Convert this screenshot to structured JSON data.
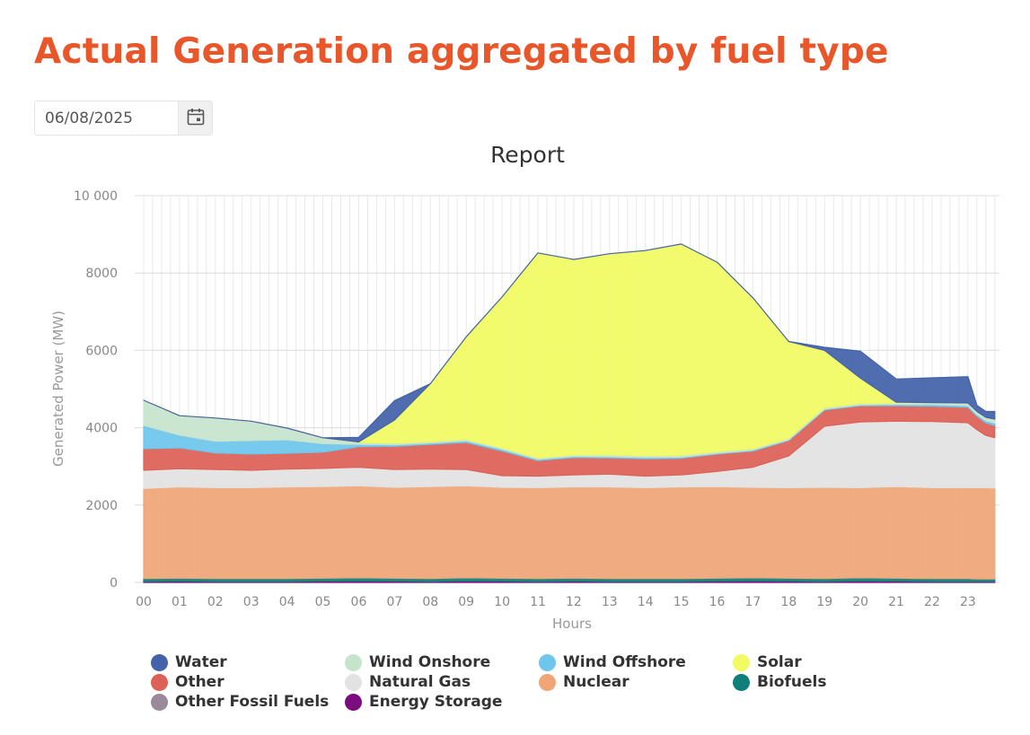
{
  "page": {
    "title": "Actual Generation aggregated by fuel type"
  },
  "date_picker": {
    "value": "06/08/2025",
    "icon": "calendar-icon"
  },
  "chart_data": {
    "type": "area",
    "stacked": true,
    "title": "Report",
    "xlabel": "Hours",
    "ylabel": "Generated Power (MW)",
    "ylim": [
      0,
      10000
    ],
    "yticks": [
      0,
      2000,
      4000,
      6000,
      8000,
      10000
    ],
    "ytick_labels": [
      "0",
      "2000",
      "4000",
      "6000",
      "8000",
      "10 000"
    ],
    "xtick_labels": [
      "00",
      "01",
      "02",
      "03",
      "04",
      "05",
      "06",
      "07",
      "08",
      "09",
      "10",
      "11",
      "12",
      "13",
      "14",
      "15",
      "16",
      "17",
      "18",
      "19",
      "20",
      "21",
      "22",
      "23"
    ],
    "grid": true,
    "legend_position": "bottom",
    "x": [
      0,
      1,
      2,
      3,
      4,
      5,
      6,
      7,
      8,
      9,
      10,
      11,
      12,
      13,
      14,
      15,
      16,
      17,
      18,
      19,
      20,
      21,
      22,
      23,
      23.25,
      23.5,
      23.75
    ],
    "series": [
      {
        "name": "Energy Storage",
        "color": "#7b0d7e",
        "values": [
          20,
          30,
          20,
          20,
          20,
          30,
          40,
          30,
          20,
          40,
          30,
          20,
          30,
          20,
          20,
          20,
          30,
          40,
          30,
          20,
          40,
          30,
          20,
          20,
          20,
          20,
          20
        ]
      },
      {
        "name": "Biofuels",
        "color": "#0f7f7a",
        "values": [
          80,
          80,
          80,
          80,
          80,
          80,
          80,
          80,
          80,
          80,
          80,
          80,
          80,
          80,
          80,
          80,
          80,
          80,
          80,
          80,
          80,
          80,
          80,
          80,
          70,
          70,
          70
        ]
      },
      {
        "name": "Nuclear",
        "color": "#f0a577",
        "values": [
          2330,
          2360,
          2350,
          2350,
          2370,
          2370,
          2380,
          2350,
          2380,
          2380,
          2350,
          2350,
          2360,
          2370,
          2350,
          2370,
          2370,
          2340,
          2340,
          2360,
          2330,
          2370,
          2350,
          2350,
          2360,
          2360,
          2350
        ]
      },
      {
        "name": "Natural Gas",
        "color": "#e2e2e2",
        "values": [
          470,
          470,
          470,
          450,
          460,
          470,
          480,
          460,
          450,
          420,
          300,
          300,
          310,
          330,
          300,
          310,
          390,
          520,
          820,
          1580,
          1700,
          1690,
          1710,
          1680,
          1500,
          1350,
          1300
        ]
      },
      {
        "name": "Other",
        "color": "#dd6156",
        "values": [
          560,
          540,
          430,
          420,
          410,
          420,
          530,
          600,
          640,
          700,
          640,
          400,
          450,
          420,
          450,
          430,
          450,
          420,
          400,
          420,
          420,
          400,
          400,
          400,
          350,
          330,
          320
        ]
      },
      {
        "name": "Other Fossil Fuels",
        "color": "#9a8a9a",
        "values": [
          0,
          0,
          0,
          0,
          0,
          0,
          0,
          0,
          0,
          0,
          0,
          0,
          0,
          0,
          0,
          0,
          0,
          0,
          0,
          0,
          0,
          0,
          0,
          0,
          0,
          0,
          0
        ]
      },
      {
        "name": "Wind Offshore",
        "color": "#6ec6ec",
        "values": [
          600,
          330,
          300,
          350,
          350,
          220,
          60,
          40,
          30,
          40,
          40,
          30,
          30,
          30,
          30,
          30,
          20,
          20,
          20,
          20,
          20,
          30,
          40,
          40,
          40,
          50,
          60
        ]
      },
      {
        "name": "Wind Onshore",
        "color": "#c6e4cc",
        "values": [
          650,
          500,
          600,
          500,
          300,
          150,
          50,
          40,
          40,
          40,
          40,
          40,
          40,
          50,
          50,
          50,
          40,
          40,
          40,
          40,
          40,
          40,
          50,
          70,
          80,
          90,
          100
        ]
      },
      {
        "name": "Solar",
        "color": "#f1fb62",
        "values": [
          0,
          0,
          0,
          0,
          0,
          0,
          10,
          600,
          1500,
          2650,
          3900,
          5300,
          5050,
          5200,
          5300,
          5460,
          4900,
          3900,
          2500,
          1480,
          650,
          20,
          0,
          0,
          0,
          0,
          0
        ]
      },
      {
        "name": "Water",
        "color": "#4362aa",
        "values": [
          0,
          0,
          0,
          0,
          0,
          0,
          120,
          500,
          0,
          0,
          0,
          0,
          0,
          0,
          0,
          0,
          0,
          0,
          0,
          80,
          700,
          600,
          640,
          680,
          160,
          150,
          200
        ]
      }
    ],
    "legend_order": [
      "Water",
      "Wind Onshore",
      "Wind Offshore",
      "Solar",
      "Other",
      "Natural Gas",
      "Nuclear",
      "Biofuels",
      "Other Fossil Fuels",
      "Energy Storage"
    ]
  }
}
